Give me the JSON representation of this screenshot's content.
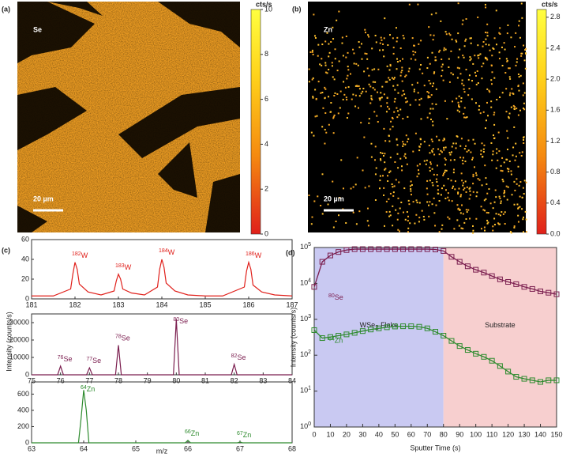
{
  "chart_data": [
    {
      "type": "map",
      "panel_label": "(a)",
      "title": "Se",
      "scale_bar": "20 µm",
      "colorbar_label": "cts/s",
      "clim": [
        0,
        10
      ],
      "cticks": [
        0,
        2,
        4,
        6,
        8,
        10
      ]
    },
    {
      "type": "map",
      "panel_label": "(b)",
      "title": "Zn",
      "scale_bar": "20 µm",
      "colorbar_label": "cts/s",
      "clim": [
        0,
        2.9
      ],
      "cticks": [
        {
          "value": 0,
          "label": "0.0"
        },
        0.4,
        0.8,
        1.2,
        1.6,
        {
          "value": 2,
          "label": "2.0"
        },
        2.4,
        2.8
      ]
    },
    {
      "type": "spectrum",
      "panel_label": "(c)",
      "color": "#e0201b",
      "x": [
        181,
        181.5,
        181.9,
        181.95,
        182,
        182.05,
        182.1,
        182.3,
        182.6,
        182.9,
        182.95,
        183,
        183.05,
        183.1,
        183.3,
        183.6,
        183.9,
        183.95,
        184,
        184.05,
        184.1,
        184.3,
        184.6,
        185,
        185.4,
        185.9,
        185.95,
        186,
        186.05,
        186.1,
        186.3,
        186.6,
        187
      ],
      "values": [
        3,
        3,
        10,
        25,
        37,
        30,
        15,
        7,
        4,
        8,
        18,
        25,
        20,
        10,
        6,
        4,
        12,
        30,
        40,
        32,
        16,
        8,
        4,
        3,
        3,
        12,
        28,
        37,
        30,
        14,
        7,
        4,
        3
      ],
      "xlim": [
        181,
        187
      ],
      "xticks": [
        181,
        182,
        183,
        184,
        185,
        186,
        187
      ],
      "ylim": [
        0,
        60
      ],
      "yticks": [
        0,
        20,
        40,
        60
      ],
      "annotations": [
        {
          "mass": 182,
          "symbol": "W"
        },
        {
          "mass": 183,
          "symbol": "W"
        },
        {
          "mass": 184,
          "symbol": "W"
        },
        {
          "mass": 186,
          "symbol": "W"
        }
      ]
    },
    {
      "type": "spectrum",
      "color": "#7b1e4f",
      "ylabel": "Intensity (counts/s)",
      "x": [
        75,
        75.9,
        76,
        76.1,
        76.9,
        77,
        77.1,
        77.9,
        78,
        78.1,
        79,
        79.9,
        80,
        80.1,
        81,
        81.9,
        82,
        82.1,
        83,
        84
      ],
      "values": [
        0,
        0,
        5000,
        0,
        0,
        4000,
        0,
        0,
        17000,
        0,
        0,
        0,
        32000,
        0,
        0,
        0,
        6000,
        0,
        0,
        0
      ],
      "xlim": [
        75,
        84
      ],
      "xticks": [
        75,
        76,
        77,
        78,
        79,
        80,
        81,
        82,
        83,
        84
      ],
      "ylim": [
        0,
        35000
      ],
      "yticks": [
        0,
        10000,
        20000,
        30000
      ],
      "annotations": [
        {
          "mass": 76,
          "symbol": "Se"
        },
        {
          "mass": 77,
          "symbol": "Se"
        },
        {
          "mass": 78,
          "symbol": "Se"
        },
        {
          "mass": 80,
          "symbol": "Se"
        },
        {
          "mass": 82,
          "symbol": "Se"
        }
      ]
    },
    {
      "type": "spectrum",
      "color": "#2e8b2e",
      "xlabel": "m/z",
      "x": [
        63,
        63.9,
        63.95,
        64,
        64.05,
        64.1,
        65,
        65.95,
        66,
        66.05,
        66.95,
        67,
        67.05,
        68
      ],
      "values": [
        0,
        0,
        300,
        650,
        400,
        0,
        0,
        0,
        30,
        0,
        0,
        10,
        0,
        0
      ],
      "xlim": [
        63,
        68
      ],
      "xticks": [
        63,
        64,
        65,
        66,
        67,
        68
      ],
      "ylim": [
        0,
        750
      ],
      "yticks": [
        0,
        200,
        400,
        600
      ],
      "annotations": [
        {
          "mass": 64,
          "symbol": "Zn"
        },
        {
          "mass": 66,
          "symbol": "Zn"
        },
        {
          "mass": 67,
          "symbol": "Zn"
        }
      ]
    },
    {
      "type": "depth",
      "panel_label": "(d)",
      "xlabel": "Sputter Time (s)",
      "ylabel": "Intensity (counts/s)",
      "log_y": true,
      "x": [
        0,
        5,
        10,
        15,
        20,
        25,
        30,
        35,
        40,
        45,
        50,
        55,
        60,
        65,
        70,
        75,
        80,
        85,
        90,
        95,
        100,
        105,
        110,
        115,
        120,
        125,
        130,
        135,
        140,
        145,
        150
      ],
      "series": [
        {
          "name": "Se",
          "mass": 80,
          "color": "#7b1e4f",
          "values": [
            8000,
            40000,
            60000,
            75000,
            85000,
            90000,
            90000,
            90000,
            90000,
            90000,
            90000,
            90000,
            90000,
            90000,
            90000,
            88000,
            80000,
            55000,
            40000,
            30000,
            24000,
            20000,
            16000,
            13000,
            11000,
            9500,
            8000,
            7000,
            6000,
            5500,
            5000
          ]
        },
        {
          "name": "Zn",
          "mass": 64,
          "color": "#2e8b2e",
          "values": [
            500,
            300,
            320,
            350,
            380,
            420,
            470,
            520,
            560,
            600,
            630,
            640,
            640,
            620,
            560,
            450,
            350,
            250,
            180,
            140,
            110,
            90,
            70,
            50,
            35,
            25,
            22,
            20,
            18,
            20,
            20
          ]
        }
      ],
      "xlim": [
        0,
        150
      ],
      "xticks": [
        0,
        10,
        20,
        30,
        40,
        50,
        60,
        70,
        80,
        90,
        100,
        110,
        120,
        130,
        140,
        150
      ],
      "ylim": [
        1,
        100000
      ],
      "yticks": [
        {
          "value": 1,
          "label": "10",
          "exponent": "0"
        },
        {
          "value": 10,
          "label": "10",
          "exponent": "1"
        },
        {
          "value": 100,
          "label": "10",
          "exponent": "2"
        },
        {
          "value": 1000,
          "label": "10",
          "exponent": "3"
        },
        {
          "value": 10000,
          "label": "10",
          "exponent": "4"
        },
        {
          "value": 100000,
          "label": "10",
          "exponent": "5"
        }
      ],
      "regions": [
        {
          "label": "WSe",
          "subscript": "2",
          "suffix": " Flake",
          "range": [
            0,
            80
          ],
          "color": "#c9c9f2"
        },
        {
          "label": "Substrate",
          "range": [
            80,
            150
          ],
          "color": "#f7cfcf"
        }
      ]
    }
  ]
}
